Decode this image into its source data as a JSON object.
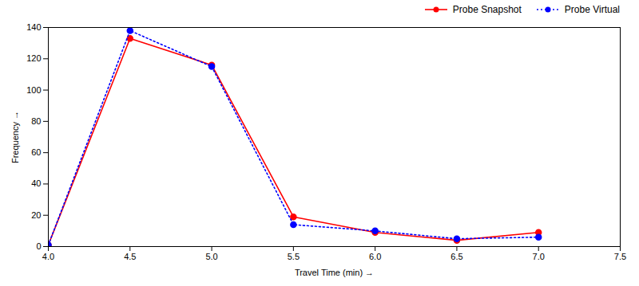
{
  "chart_data": {
    "type": "line",
    "xlabel": "Travel Time (min)",
    "ylabel": "Frequency",
    "x": [
      4.0,
      4.5,
      5.0,
      5.5,
      6.0,
      6.5,
      7.0
    ],
    "series": [
      {
        "name": "Probe Snapshot",
        "color": "#ff0000",
        "marker": "circle",
        "line_style": "solid",
        "values": [
          1,
          133,
          116,
          19,
          9,
          4,
          9
        ]
      },
      {
        "name": "Probe Virtual",
        "color": "#0000ff",
        "marker": "circle",
        "line_style": "dotted",
        "values": [
          1,
          138,
          115,
          14,
          10,
          5,
          6
        ]
      }
    ],
    "xlim": [
      4.0,
      7.5
    ],
    "ylim": [
      0,
      140
    ],
    "xticks": [
      {
        "value": 4.0,
        "label": "4.0"
      },
      4.5,
      {
        "value": 5.0,
        "label": "5.0"
      },
      5.5,
      {
        "value": 6.0,
        "label": "6.0"
      },
      6.5,
      {
        "value": 7.0,
        "label": "7.0"
      },
      7.5
    ],
    "yticks": [
      0,
      20,
      40,
      60,
      80,
      100,
      120,
      140
    ],
    "legend": "upper right"
  }
}
